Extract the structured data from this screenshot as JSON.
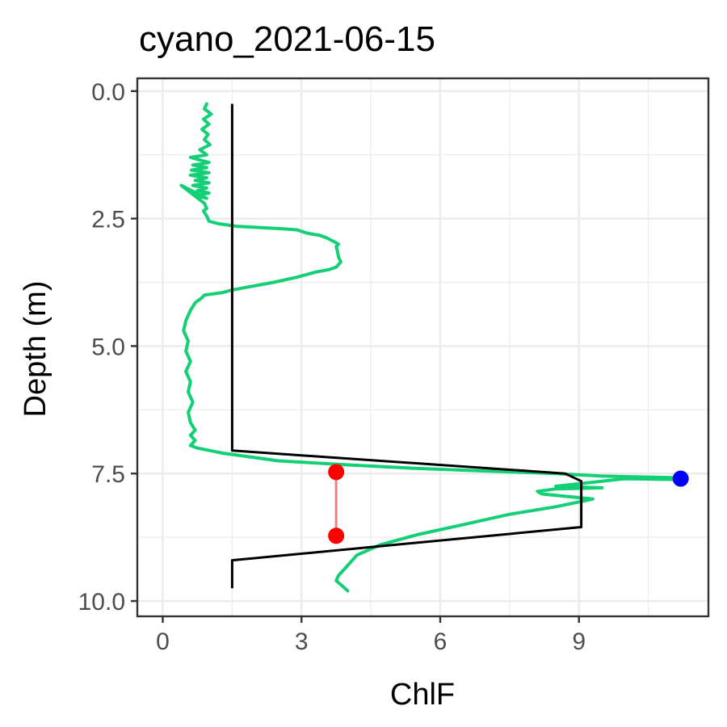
{
  "chart_data": {
    "type": "line",
    "title": "cyano_2021-06-15",
    "xlabel": "ChlF",
    "ylabel": "Depth (m)",
    "xlim": [
      -0.55,
      11.8
    ],
    "ylim": [
      10.3,
      -0.25
    ],
    "y_reversed": true,
    "grid": true,
    "x_ticks": [
      0,
      3,
      6,
      9
    ],
    "x_tick_labels": [
      "0",
      "3",
      "6",
      "9"
    ],
    "y_ticks": [
      0,
      2.5,
      5,
      7.5,
      10
    ],
    "y_tick_labels": [
      "0.0",
      "2.5",
      "5.0",
      "7.5",
      "10.0"
    ],
    "colors": {
      "profile": "#13cf75",
      "fit": "#000000",
      "range_points": "#ff0000",
      "range_line": "#f08080",
      "peak": "#0000ff",
      "grid": "#ebebeb",
      "border": "#333333"
    },
    "series": [
      {
        "role": "profile",
        "x": [
          0.95,
          0.9,
          1.05,
          0.88,
          1.0,
          0.85,
          0.98,
          0.9,
          1.02,
          0.8,
          0.95,
          0.6,
          1.0,
          0.65,
          0.95,
          0.62,
          1.0,
          0.6,
          0.95,
          0.7,
          1.0,
          0.65,
          0.95,
          0.75,
          1.0,
          0.7,
          0.95,
          0.4,
          0.9,
          0.95,
          0.88,
          0.95,
          1.0,
          1.2,
          1.6,
          2.2,
          2.6,
          2.9,
          3.0,
          3.1,
          3.2,
          3.4,
          3.55,
          3.7,
          3.8,
          3.75,
          3.78,
          3.8,
          3.85,
          3.75,
          3.6,
          3.3,
          2.9,
          2.4,
          1.8,
          1.5,
          1.3,
          0.9,
          0.85,
          0.7,
          0.6,
          0.5,
          0.45,
          0.55,
          0.5,
          0.6,
          0.5,
          0.6,
          0.55,
          0.65,
          0.55,
          0.6,
          0.7,
          0.6,
          0.7,
          0.65,
          0.6,
          0.75,
          1.3,
          2.5,
          4.0,
          5.5,
          7.0,
          8.5,
          9.5,
          11.0,
          11.2,
          10.0,
          9.5,
          9.0,
          8.5,
          9.5,
          8.5,
          8.1,
          8.2,
          9.3,
          8.5,
          7.5,
          6.5,
          5.5,
          4.7,
          4.2,
          4.0,
          3.8,
          3.75,
          4.0
        ],
        "y": [
          0.25,
          0.35,
          0.45,
          0.55,
          0.65,
          0.75,
          0.85,
          0.95,
          1.05,
          1.15,
          1.25,
          1.3,
          1.4,
          1.45,
          1.5,
          1.55,
          1.6,
          1.65,
          1.7,
          1.75,
          1.8,
          1.85,
          1.9,
          1.95,
          2.0,
          2.05,
          2.1,
          1.85,
          2.2,
          2.3,
          2.35,
          2.45,
          2.55,
          2.6,
          2.65,
          2.68,
          2.7,
          2.72,
          2.75,
          2.78,
          2.8,
          2.83,
          2.88,
          2.95,
          3.0,
          3.05,
          3.15,
          3.25,
          3.35,
          3.45,
          3.5,
          3.55,
          3.65,
          3.75,
          3.85,
          3.9,
          3.95,
          4.0,
          4.05,
          4.15,
          4.3,
          4.5,
          4.7,
          4.9,
          5.1,
          5.3,
          5.5,
          5.7,
          5.9,
          6.1,
          6.3,
          6.5,
          6.65,
          6.75,
          6.85,
          6.9,
          6.95,
          7.0,
          7.1,
          7.25,
          7.33,
          7.4,
          7.45,
          7.5,
          7.55,
          7.58,
          7.62,
          7.6,
          7.65,
          7.7,
          7.75,
          7.78,
          7.8,
          7.85,
          7.9,
          8.0,
          8.15,
          8.3,
          8.5,
          8.7,
          8.9,
          9.1,
          9.3,
          9.5,
          9.6,
          9.8
        ]
      },
      {
        "role": "fit",
        "x": [
          1.5,
          1.5,
          8.7,
          9.05,
          9.05,
          1.5,
          1.5
        ],
        "y": [
          0.25,
          7.05,
          7.5,
          7.65,
          8.55,
          9.2,
          9.75
        ]
      },
      {
        "role": "range",
        "x": [
          3.75,
          3.75
        ],
        "y": [
          7.47,
          8.72
        ]
      }
    ],
    "peak_point": {
      "x": 11.2,
      "y": 7.6
    }
  }
}
